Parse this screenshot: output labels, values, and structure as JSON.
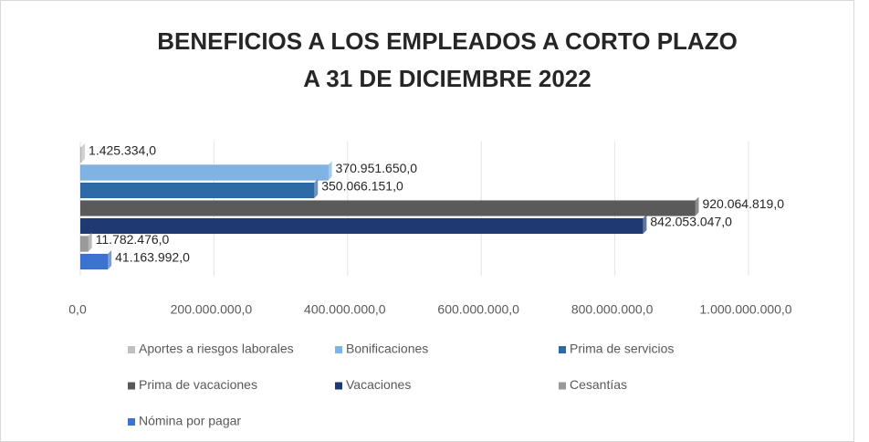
{
  "chart_data": {
    "type": "bar",
    "orientation": "horizontal",
    "title": [
      "BENEFICIOS A LOS EMPLEADOS  A CORTO  PLAZO",
      "A 31 DE DICIEMBRE 2022"
    ],
    "categories": [
      null
    ],
    "series": [
      {
        "name": "Aportes a riesgos laborales",
        "color": "#bfbfbf",
        "values": [
          1425334
        ],
        "value_labels": [
          "1.425.334,0"
        ]
      },
      {
        "name": "Bonificaciones",
        "color": "#7eb3e3",
        "values": [
          370951650
        ],
        "value_labels": [
          "370.951.650,0"
        ]
      },
      {
        "name": "Prima de servicios",
        "color": "#2e6aa6",
        "values": [
          350066151
        ],
        "value_labels": [
          "350.066.151,0"
        ]
      },
      {
        "name": "Prima de vacaciones",
        "color": "#5a5a5a",
        "values": [
          920064819
        ],
        "value_labels": [
          "920.064.819,0"
        ]
      },
      {
        "name": "Vacaciones",
        "color": "#1f3a73",
        "values": [
          842053047
        ],
        "value_labels": [
          "842.053.047,0"
        ]
      },
      {
        "name": "Cesantías",
        "color": "#9a9a9a",
        "values": [
          11782476
        ],
        "value_labels": [
          "11.782.476,0"
        ]
      },
      {
        "name": "Nómina por pagar",
        "color": "#3c73d0",
        "values": [
          41163992
        ],
        "value_labels": [
          "41.163.992,0"
        ]
      }
    ],
    "xlim": [
      0,
      1000000000
    ],
    "xticks": [
      {
        "value": 0,
        "label": "0,0"
      },
      {
        "value": 200000000,
        "label": "200.000.000,0"
      },
      {
        "value": 400000000,
        "label": "400.000.000,0"
      },
      {
        "value": 600000000,
        "label": "600.000.000,0"
      },
      {
        "value": 800000000,
        "label": "800.000.000,0"
      },
      {
        "value": 1000000000,
        "label": "1.000.000.000,0"
      }
    ],
    "grid": true,
    "legend": "bottom"
  }
}
